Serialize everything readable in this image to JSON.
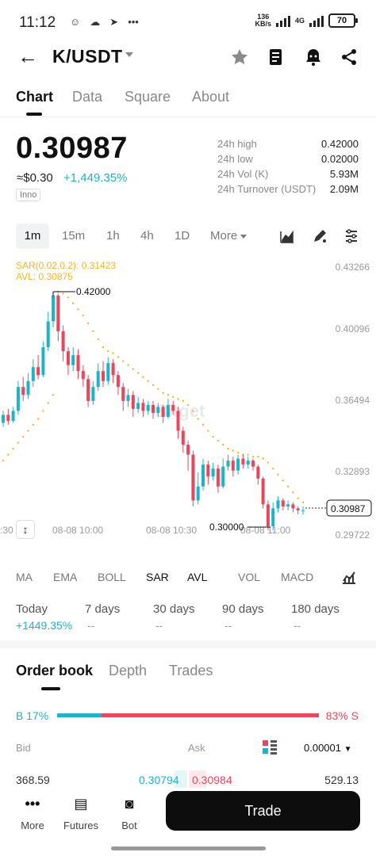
{
  "status_bar": {
    "time": "11:12",
    "net_speed_value": "136",
    "net_speed_unit": "KB/s",
    "network": "4G",
    "battery": "70"
  },
  "header": {
    "pair": "K/USDT",
    "icons": [
      "back-arrow-icon",
      "star-icon",
      "note-icon",
      "bell-icon",
      "share-icon"
    ]
  },
  "tabs": [
    "Chart",
    "Data",
    "Square",
    "About"
  ],
  "price": {
    "last": "0.30987",
    "usd": "≈$0.30",
    "change": "+1,449.35%",
    "tag": "Inno"
  },
  "stats": [
    {
      "label": "24h high",
      "value": "0.42000"
    },
    {
      "label": "24h low",
      "value": "0.02000"
    },
    {
      "label": "24h Vol (K)",
      "value": "5.93M"
    },
    {
      "label": "24h Turnover (USDT)",
      "value": "2.09M"
    }
  ],
  "intervals": [
    "1m",
    "15m",
    "1h",
    "4h",
    "1D",
    "More"
  ],
  "chart_data": {
    "type": "candlestick",
    "indicator_sar": "SAR(0.02,0.2): 0.31423",
    "indicator_avl": "AVL: 0.30875",
    "watermark": "Bitget",
    "y_ticks": [
      "0.43266",
      "0.40096",
      "0.36494",
      "0.32893",
      "0.29722"
    ],
    "x_ticks": [
      ":30",
      "08-08 10:00",
      "08-08 10:30",
      "08-08 11:00"
    ],
    "ylim": [
      0.29722,
      0.43266
    ],
    "high_label": "0.42000",
    "low_label": "0.30000",
    "last_price_label": "0.30987",
    "candles": [
      {
        "o": 0.354,
        "c": 0.358,
        "h": 0.36,
        "l": 0.352
      },
      {
        "o": 0.358,
        "c": 0.355,
        "h": 0.361,
        "l": 0.353
      },
      {
        "o": 0.355,
        "c": 0.36,
        "h": 0.362,
        "l": 0.354
      },
      {
        "o": 0.36,
        "c": 0.372,
        "h": 0.375,
        "l": 0.358
      },
      {
        "o": 0.372,
        "c": 0.368,
        "h": 0.377,
        "l": 0.365
      },
      {
        "o": 0.368,
        "c": 0.375,
        "h": 0.379,
        "l": 0.366
      },
      {
        "o": 0.375,
        "c": 0.382,
        "h": 0.386,
        "l": 0.372
      },
      {
        "o": 0.382,
        "c": 0.378,
        "h": 0.388,
        "l": 0.376
      },
      {
        "o": 0.378,
        "c": 0.392,
        "h": 0.395,
        "l": 0.377
      },
      {
        "o": 0.392,
        "c": 0.405,
        "h": 0.41,
        "l": 0.39
      },
      {
        "o": 0.405,
        "c": 0.418,
        "h": 0.42,
        "l": 0.402
      },
      {
        "o": 0.418,
        "c": 0.4,
        "h": 0.419,
        "l": 0.395
      },
      {
        "o": 0.4,
        "c": 0.39,
        "h": 0.403,
        "l": 0.385
      },
      {
        "o": 0.39,
        "c": 0.383,
        "h": 0.392,
        "l": 0.378
      },
      {
        "o": 0.383,
        "c": 0.388,
        "h": 0.392,
        "l": 0.38
      },
      {
        "o": 0.388,
        "c": 0.38,
        "h": 0.391,
        "l": 0.376
      },
      {
        "o": 0.38,
        "c": 0.376,
        "h": 0.383,
        "l": 0.372
      },
      {
        "o": 0.376,
        "c": 0.365,
        "h": 0.378,
        "l": 0.362
      },
      {
        "o": 0.365,
        "c": 0.372,
        "h": 0.375,
        "l": 0.363
      },
      {
        "o": 0.372,
        "c": 0.38,
        "h": 0.384,
        "l": 0.37
      },
      {
        "o": 0.38,
        "c": 0.375,
        "h": 0.385,
        "l": 0.372
      },
      {
        "o": 0.375,
        "c": 0.384,
        "h": 0.387,
        "l": 0.373
      },
      {
        "o": 0.384,
        "c": 0.378,
        "h": 0.386,
        "l": 0.374
      },
      {
        "o": 0.378,
        "c": 0.372,
        "h": 0.38,
        "l": 0.368
      },
      {
        "o": 0.372,
        "c": 0.365,
        "h": 0.374,
        "l": 0.36
      },
      {
        "o": 0.365,
        "c": 0.368,
        "h": 0.371,
        "l": 0.362
      },
      {
        "o": 0.368,
        "c": 0.361,
        "h": 0.37,
        "l": 0.357
      },
      {
        "o": 0.361,
        "c": 0.364,
        "h": 0.367,
        "l": 0.359
      },
      {
        "o": 0.364,
        "c": 0.36,
        "h": 0.366,
        "l": 0.357
      },
      {
        "o": 0.36,
        "c": 0.363,
        "h": 0.365,
        "l": 0.358
      },
      {
        "o": 0.363,
        "c": 0.359,
        "h": 0.365,
        "l": 0.356
      },
      {
        "o": 0.359,
        "c": 0.362,
        "h": 0.364,
        "l": 0.357
      },
      {
        "o": 0.362,
        "c": 0.357,
        "h": 0.363,
        "l": 0.354
      },
      {
        "o": 0.357,
        "c": 0.363,
        "h": 0.366,
        "l": 0.356
      },
      {
        "o": 0.363,
        "c": 0.36,
        "h": 0.365,
        "l": 0.358
      },
      {
        "o": 0.36,
        "c": 0.35,
        "h": 0.362,
        "l": 0.346
      },
      {
        "o": 0.35,
        "c": 0.343,
        "h": 0.352,
        "l": 0.339
      },
      {
        "o": 0.343,
        "c": 0.338,
        "h": 0.345,
        "l": 0.33
      },
      {
        "o": 0.338,
        "c": 0.315,
        "h": 0.34,
        "l": 0.312
      },
      {
        "o": 0.315,
        "c": 0.322,
        "h": 0.329,
        "l": 0.313
      },
      {
        "o": 0.322,
        "c": 0.333,
        "h": 0.336,
        "l": 0.32
      },
      {
        "o": 0.333,
        "c": 0.327,
        "h": 0.335,
        "l": 0.323
      },
      {
        "o": 0.327,
        "c": 0.331,
        "h": 0.334,
        "l": 0.325
      },
      {
        "o": 0.331,
        "c": 0.322,
        "h": 0.333,
        "l": 0.319
      },
      {
        "o": 0.322,
        "c": 0.332,
        "h": 0.336,
        "l": 0.321
      },
      {
        "o": 0.332,
        "c": 0.335,
        "h": 0.338,
        "l": 0.33
      },
      {
        "o": 0.335,
        "c": 0.33,
        "h": 0.337,
        "l": 0.327
      },
      {
        "o": 0.33,
        "c": 0.336,
        "h": 0.338,
        "l": 0.328
      },
      {
        "o": 0.336,
        "c": 0.333,
        "h": 0.338,
        "l": 0.331
      },
      {
        "o": 0.333,
        "c": 0.335,
        "h": 0.337,
        "l": 0.331
      },
      {
        "o": 0.335,
        "c": 0.332,
        "h": 0.336,
        "l": 0.33
      },
      {
        "o": 0.332,
        "c": 0.326,
        "h": 0.333,
        "l": 0.323
      },
      {
        "o": 0.326,
        "c": 0.313,
        "h": 0.327,
        "l": 0.311
      },
      {
        "o": 0.313,
        "c": 0.302,
        "h": 0.315,
        "l": 0.3
      },
      {
        "o": 0.302,
        "c": 0.311,
        "h": 0.314,
        "l": 0.3
      },
      {
        "o": 0.311,
        "c": 0.315,
        "h": 0.317,
        "l": 0.309
      },
      {
        "o": 0.315,
        "c": 0.312,
        "h": 0.316,
        "l": 0.31
      },
      {
        "o": 0.312,
        "c": 0.313,
        "h": 0.315,
        "l": 0.31
      },
      {
        "o": 0.313,
        "c": 0.311,
        "h": 0.314,
        "l": 0.309
      },
      {
        "o": 0.311,
        "c": 0.31,
        "h": 0.312,
        "l": 0.308
      },
      {
        "o": 0.31,
        "c": 0.31,
        "h": 0.312,
        "l": 0.308
      }
    ],
    "sar": [
      0.335,
      0.338,
      0.341,
      0.344,
      0.347,
      0.35,
      0.353,
      0.356,
      0.36,
      0.364,
      0.368,
      0.42,
      0.419,
      0.417,
      0.414,
      0.411,
      0.408,
      0.404,
      0.4,
      0.396,
      0.392,
      0.39,
      0.389,
      0.387,
      0.385,
      0.383,
      0.381,
      0.379,
      0.377,
      0.375,
      0.373,
      0.371,
      0.369,
      0.368,
      0.367,
      0.366,
      0.365,
      0.363,
      0.36,
      0.356,
      0.353,
      0.35,
      0.347,
      0.345,
      0.343,
      0.341,
      0.34,
      0.339,
      0.338,
      0.338,
      0.337,
      0.337,
      0.336,
      0.334,
      0.331,
      0.328,
      0.325,
      0.322,
      0.319,
      0.316,
      0.314
    ]
  },
  "indicators": [
    "MA",
    "EMA",
    "BOLL",
    "SAR",
    "AVL",
    "VOL",
    "MACD"
  ],
  "periods": [
    {
      "label": "Today",
      "value": "+1449.35%"
    },
    {
      "label": "7 days",
      "value": "--"
    },
    {
      "label": "30 days",
      "value": "--"
    },
    {
      "label": "90 days",
      "value": "--"
    },
    {
      "label": "180 days",
      "value": "--"
    }
  ],
  "orderbook": {
    "tabs": [
      "Order book",
      "Depth",
      "Trades"
    ],
    "buy_ratio": "B 17%",
    "sell_ratio": "83% S",
    "buy_fraction": 0.17,
    "bid_label": "Bid",
    "ask_label": "Ask",
    "precision": "0.00001",
    "rows": [
      {
        "bid_qty": "368.59",
        "bid": "0.30794",
        "ask": "0.30984",
        "ask_qty": "529.13"
      }
    ]
  },
  "bottom_nav": [
    {
      "label": "More",
      "icon": "dots-icon"
    },
    {
      "label": "Futures",
      "icon": "futures-icon"
    },
    {
      "label": "Bot",
      "icon": "bot-icon"
    }
  ],
  "trade_button": "Trade",
  "colors": {
    "up": "#1fb3c8",
    "down": "#e8475e",
    "sar": "#f0b429",
    "avl": "#f0b429"
  }
}
